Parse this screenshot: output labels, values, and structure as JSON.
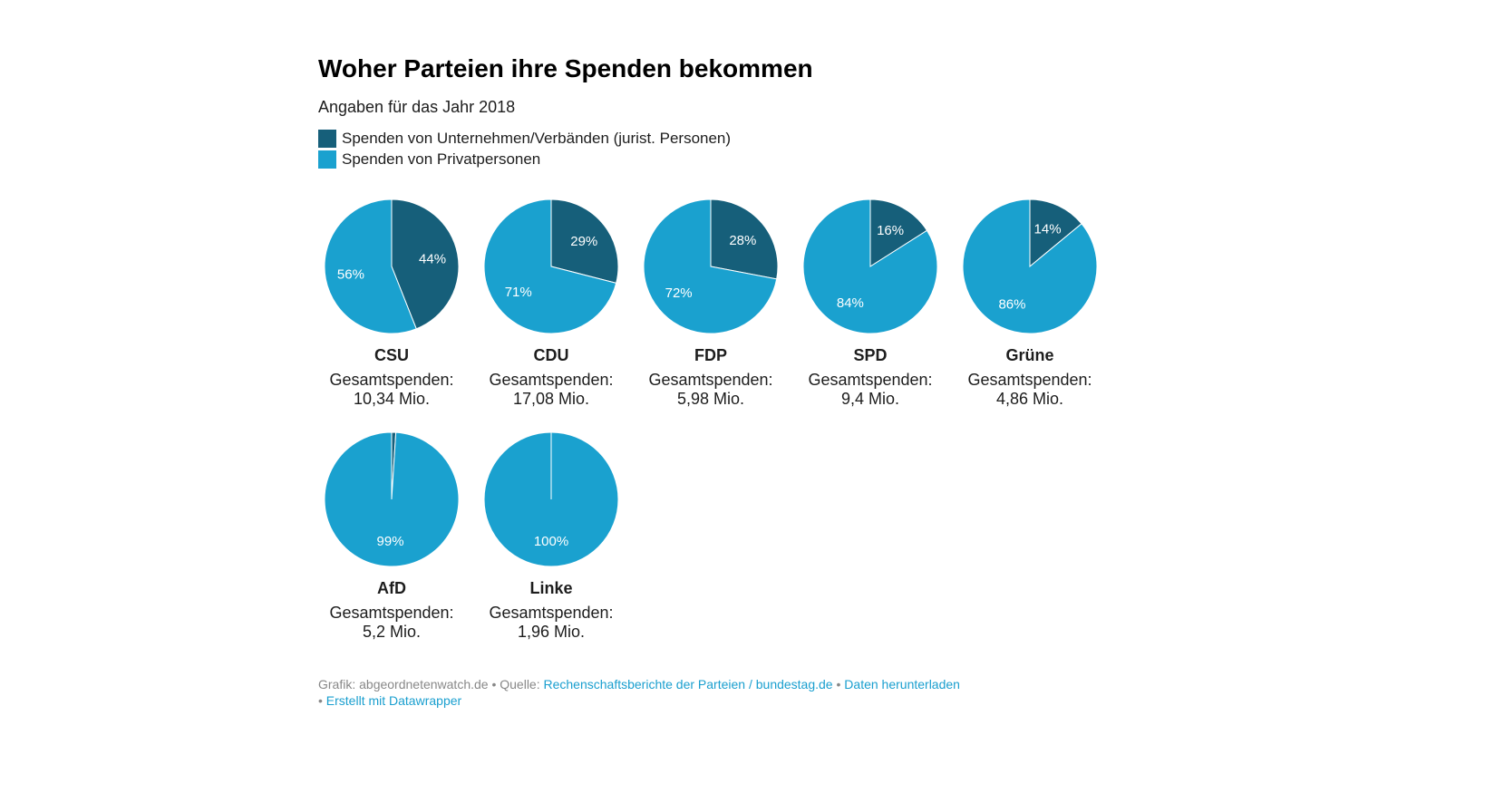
{
  "chart_data": {
    "type": "pie",
    "title": "Woher Parteien ihre Spenden bekommen",
    "subtitle": "Angaben für das Jahr 2018",
    "legend": [
      {
        "name": "Spenden von Unternehmen/Verbänden (jurist. Personen)",
        "color": "#165f7a"
      },
      {
        "name": "Spenden von Privatpersonen",
        "color": "#1aa1cf"
      }
    ],
    "total_label": "Gesamtspenden:",
    "parties": [
      {
        "name": "CSU",
        "corporate": 44,
        "private": 56,
        "total": "10,34 Mio."
      },
      {
        "name": "CDU",
        "corporate": 29,
        "private": 71,
        "total": "17,08 Mio."
      },
      {
        "name": "FDP",
        "corporate": 28,
        "private": 72,
        "total": "5,98 Mio."
      },
      {
        "name": "SPD",
        "corporate": 16,
        "private": 84,
        "total": "9,4 Mio."
      },
      {
        "name": "Grüne",
        "corporate": 14,
        "private": 86,
        "total": "4,86 Mio."
      },
      {
        "name": "AfD",
        "corporate": 1,
        "private": 99,
        "total": "5,2 Mio."
      },
      {
        "name": "Linke",
        "corporate": 0,
        "private": 100,
        "total": "1,96 Mio."
      }
    ]
  },
  "footer": {
    "grafik": "Grafik: abgeordnetenwatch.de • Quelle: ",
    "source": "Rechenschaftsberichte der Parteien / bundestag.de",
    "sep": " • ",
    "download": "Daten herunterladen",
    "sep2": "• ",
    "made": "Erstellt mit Datawrapper"
  }
}
